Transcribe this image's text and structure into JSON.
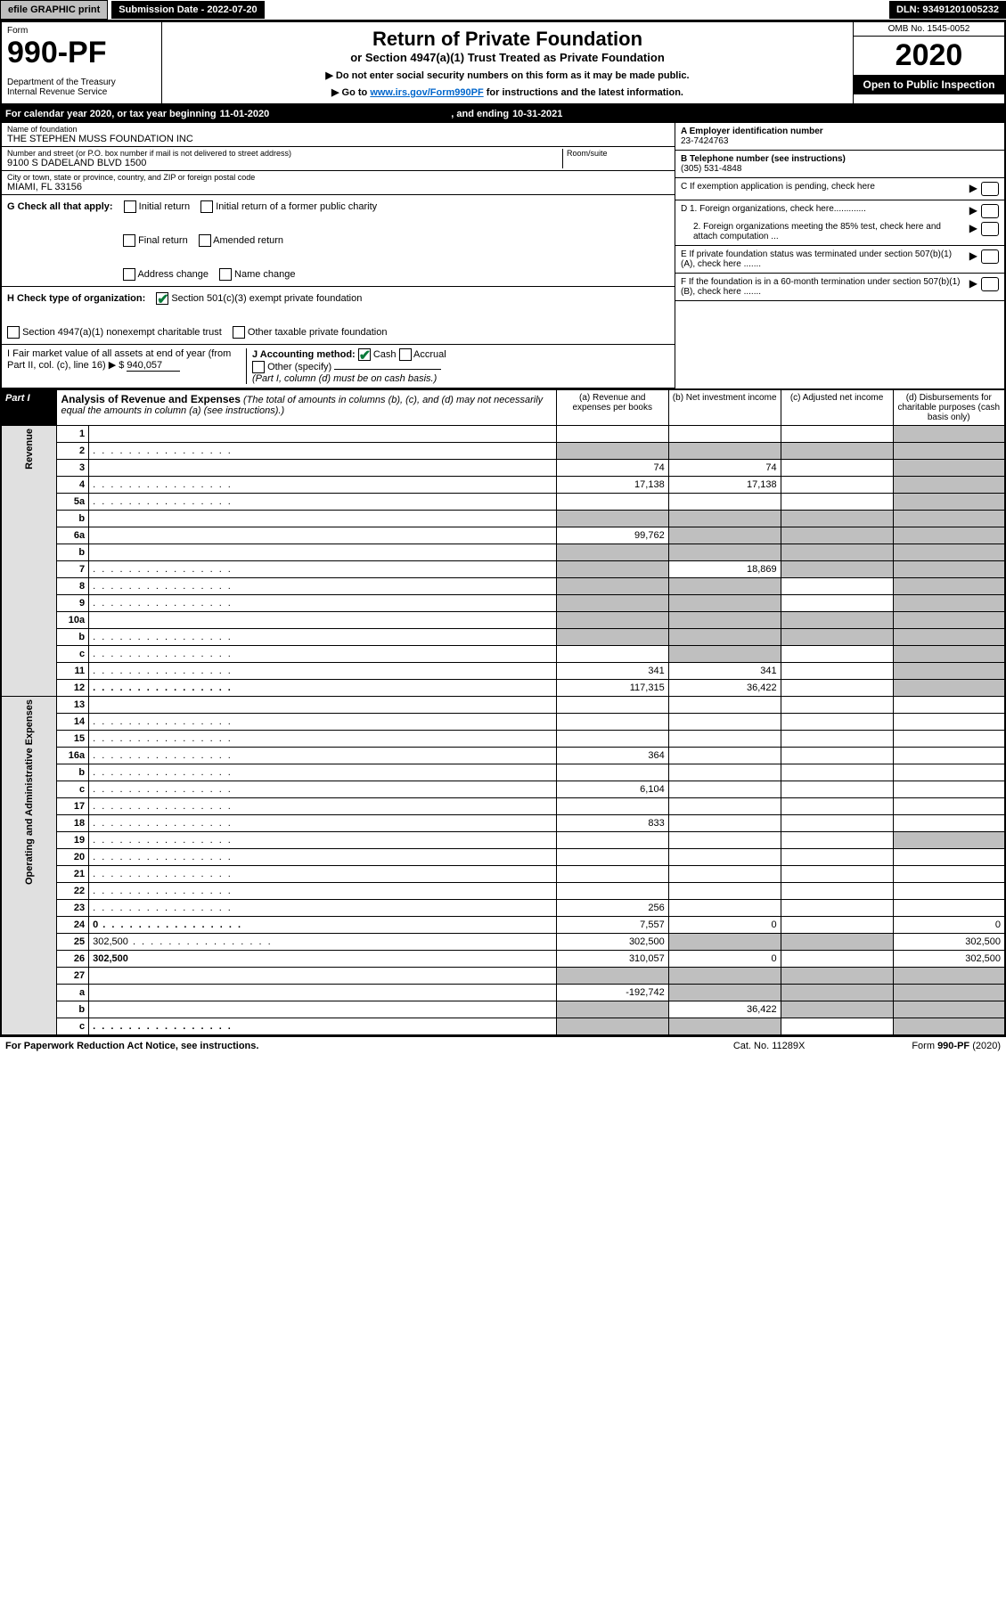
{
  "topbar": {
    "efile": "efile GRAPHIC print",
    "submission": "Submission Date - 2022-07-20",
    "dln": "DLN: 93491201005232"
  },
  "header": {
    "form_label": "Form",
    "form_number": "990-PF",
    "dept": "Department of the Treasury\nInternal Revenue Service",
    "title": "Return of Private Foundation",
    "subtitle": "or Section 4947(a)(1) Trust Treated as Private Foundation",
    "instr1": "▶ Do not enter social security numbers on this form as it may be made public.",
    "instr2_pre": "▶ Go to ",
    "instr2_link": "www.irs.gov/Form990PF",
    "instr2_post": " for instructions and the latest information.",
    "omb": "OMB No. 1545-0052",
    "year": "2020",
    "open": "Open to Public Inspection"
  },
  "cal": {
    "pre": "For calendar year 2020, or tax year beginning ",
    "begin": "11-01-2020",
    "mid": ", and ending ",
    "end": "10-31-2021"
  },
  "info": {
    "name_lbl": "Name of foundation",
    "name": "THE STEPHEN MUSS FOUNDATION INC",
    "addr_lbl": "Number and street (or P.O. box number if mail is not delivered to street address)",
    "addr": "9100 S DADELAND BLVD 1500",
    "room_lbl": "Room/suite",
    "city_lbl": "City or town, state or province, country, and ZIP or foreign postal code",
    "city": "MIAMI, FL  33156",
    "a_lbl": "A Employer identification number",
    "a_val": "23-7424763",
    "b_lbl": "B Telephone number (see instructions)",
    "b_val": "(305) 531-4848",
    "c_lbl": "C If exemption application is pending, check here",
    "d1": "D 1. Foreign organizations, check here.............",
    "d2": "2. Foreign organizations meeting the 85% test, check here and attach computation ...",
    "e": "E  If private foundation status was terminated under section 507(b)(1)(A), check here .......",
    "f": "F  If the foundation is in a 60-month termination under section 507(b)(1)(B), check here .......",
    "g_lbl": "G Check all that apply:",
    "g_opts": [
      "Initial return",
      "Initial return of a former public charity",
      "Final return",
      "Amended return",
      "Address change",
      "Name change"
    ],
    "h_lbl": "H Check type of organization:",
    "h_opts": [
      "Section 501(c)(3) exempt private foundation",
      "Section 4947(a)(1) nonexempt charitable trust",
      "Other taxable private foundation"
    ],
    "i_lbl": "I Fair market value of all assets at end of year (from Part II, col. (c), line 16) ▶ $",
    "i_val": "940,057",
    "j_lbl": "J Accounting method:",
    "j_opts": [
      "Cash",
      "Accrual",
      "Other (specify)"
    ],
    "j_note": "(Part I, column (d) must be on cash basis.)"
  },
  "part1": {
    "badge": "Part I",
    "title": "Analysis of Revenue and Expenses",
    "note": "(The total of amounts in columns (b), (c), and (d) may not necessarily equal the amounts in column (a) (see instructions).)",
    "cols": {
      "a": "(a)  Revenue and expenses per books",
      "b": "(b)  Net investment income",
      "c": "(c)  Adjusted net income",
      "d": "(d)  Disbursements for charitable purposes (cash basis only)"
    }
  },
  "sides": {
    "rev": "Revenue",
    "op": "Operating and Administrative Expenses"
  },
  "rows": [
    {
      "n": "1",
      "d": "",
      "a": "",
      "b": "",
      "c": "",
      "dg": true
    },
    {
      "n": "2",
      "d": "",
      "dotted": true,
      "a": "",
      "b": "",
      "c": "",
      "ag": true,
      "bg": true,
      "cg": true,
      "dg": true
    },
    {
      "n": "3",
      "d": "",
      "a": "74",
      "b": "74",
      "c": "",
      "dg": true
    },
    {
      "n": "4",
      "d": "",
      "dotted": true,
      "a": "17,138",
      "b": "17,138",
      "c": "",
      "dg": true
    },
    {
      "n": "5a",
      "d": "",
      "dotted": true,
      "a": "",
      "b": "",
      "c": "",
      "dg": true
    },
    {
      "n": "b",
      "d": "",
      "a": "",
      "b": "",
      "c": "",
      "ag": true,
      "bg": true,
      "cg": true,
      "dg": true
    },
    {
      "n": "6a",
      "d": "",
      "a": "99,762",
      "b": "",
      "c": "",
      "bg": true,
      "cg": true,
      "dg": true
    },
    {
      "n": "b",
      "d": "",
      "a": "",
      "b": "",
      "c": "",
      "ag": true,
      "bg": true,
      "cg": true,
      "dg": true
    },
    {
      "n": "7",
      "d": "",
      "dotted": true,
      "a": "",
      "b": "18,869",
      "c": "",
      "ag": true,
      "cg": true,
      "dg": true
    },
    {
      "n": "8",
      "d": "",
      "dotted": true,
      "a": "",
      "b": "",
      "c": "",
      "ag": true,
      "bg": true,
      "dg": true
    },
    {
      "n": "9",
      "d": "",
      "dotted": true,
      "a": "",
      "b": "",
      "c": "",
      "ag": true,
      "bg": true,
      "dg": true
    },
    {
      "n": "10a",
      "d": "",
      "a": "",
      "b": "",
      "c": "",
      "ag": true,
      "bg": true,
      "cg": true,
      "dg": true
    },
    {
      "n": "b",
      "d": "",
      "dotted": true,
      "a": "",
      "b": "",
      "c": "",
      "ag": true,
      "bg": true,
      "cg": true,
      "dg": true
    },
    {
      "n": "c",
      "d": "",
      "dotted": true,
      "a": "",
      "b": "",
      "c": "",
      "bg": true,
      "dg": true
    },
    {
      "n": "11",
      "d": "",
      "dotted": true,
      "a": "341",
      "b": "341",
      "c": "",
      "dg": true
    },
    {
      "n": "12",
      "d": "",
      "bold": true,
      "dotted": true,
      "a": "117,315",
      "b": "36,422",
      "c": "",
      "dg": true
    },
    {
      "n": "13",
      "d": "",
      "a": "",
      "b": "",
      "c": ""
    },
    {
      "n": "14",
      "d": "",
      "dotted": true,
      "a": "",
      "b": "",
      "c": ""
    },
    {
      "n": "15",
      "d": "",
      "dotted": true,
      "a": "",
      "b": "",
      "c": ""
    },
    {
      "n": "16a",
      "d": "",
      "dotted": true,
      "a": "364",
      "b": "",
      "c": ""
    },
    {
      "n": "b",
      "d": "",
      "dotted": true,
      "a": "",
      "b": "",
      "c": ""
    },
    {
      "n": "c",
      "d": "",
      "dotted": true,
      "a": "6,104",
      "b": "",
      "c": ""
    },
    {
      "n": "17",
      "d": "",
      "dotted": true,
      "a": "",
      "b": "",
      "c": ""
    },
    {
      "n": "18",
      "d": "",
      "dotted": true,
      "a": "833",
      "b": "",
      "c": ""
    },
    {
      "n": "19",
      "d": "",
      "dotted": true,
      "a": "",
      "b": "",
      "c": "",
      "dg": true
    },
    {
      "n": "20",
      "d": "",
      "dotted": true,
      "a": "",
      "b": "",
      "c": ""
    },
    {
      "n": "21",
      "d": "",
      "dotted": true,
      "a": "",
      "b": "",
      "c": ""
    },
    {
      "n": "22",
      "d": "",
      "dotted": true,
      "a": "",
      "b": "",
      "c": ""
    },
    {
      "n": "23",
      "d": "",
      "dotted": true,
      "a": "256",
      "b": "",
      "c": ""
    },
    {
      "n": "24",
      "d": "0",
      "bold": true,
      "dotted": true,
      "a": "7,557",
      "b": "0",
      "c": ""
    },
    {
      "n": "25",
      "d": "302,500",
      "dotted": true,
      "a": "302,500",
      "b": "",
      "c": "",
      "bg": true,
      "cg": true
    },
    {
      "n": "26",
      "d": "302,500",
      "bold": true,
      "a": "310,057",
      "b": "0",
      "c": ""
    },
    {
      "n": "27",
      "d": "",
      "a": "",
      "b": "",
      "c": "",
      "ag": true,
      "bg": true,
      "cg": true,
      "dg": true
    },
    {
      "n": "a",
      "d": "",
      "bold": true,
      "a": "-192,742",
      "b": "",
      "c": "",
      "bg": true,
      "cg": true,
      "dg": true
    },
    {
      "n": "b",
      "d": "",
      "bold": true,
      "a": "",
      "b": "36,422",
      "c": "",
      "ag": true,
      "cg": true,
      "dg": true
    },
    {
      "n": "c",
      "d": "",
      "bold": true,
      "dotted": true,
      "a": "",
      "b": "",
      "c": "",
      "ag": true,
      "bg": true,
      "dg": true
    }
  ],
  "footer": {
    "left": "For Paperwork Reduction Act Notice, see instructions.",
    "mid": "Cat. No. 11289X",
    "right": "Form 990-PF (2020)"
  },
  "colors": {
    "black": "#000000",
    "grey": "#bfbfbf",
    "green": "#0a7a3a",
    "link": "#0066cc"
  }
}
